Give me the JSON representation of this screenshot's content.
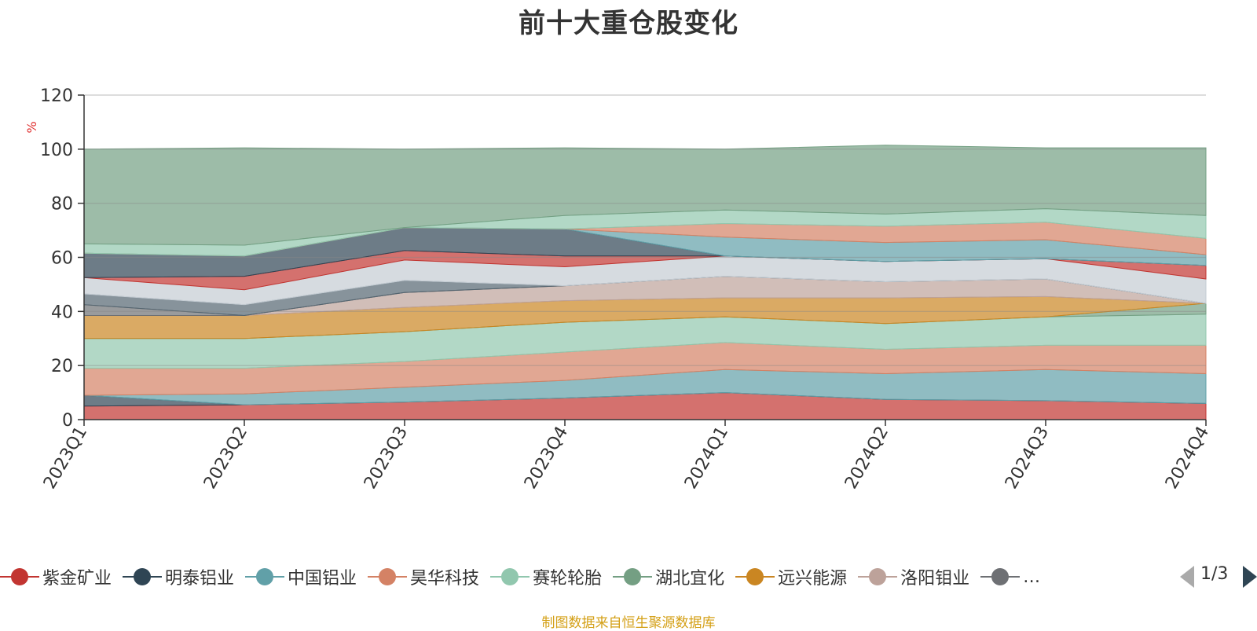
{
  "title": "前十大重仓股变化",
  "source_note": "制图数据来自恒生聚源数据库",
  "pager": {
    "text": "1/3",
    "prev_icon": "triangle-left-icon",
    "next_icon": "triangle-right-icon"
  },
  "legend": [
    {
      "name": "紫金矿业",
      "color": "#c23531"
    },
    {
      "name": "明泰铝业",
      "color": "#2f4554"
    },
    {
      "name": "中国铝业",
      "color": "#61a0a8"
    },
    {
      "name": "昊华科技",
      "color": "#d48265"
    },
    {
      "name": "赛轮轮胎",
      "color": "#91c7ae"
    },
    {
      "name": "湖北宜化",
      "color": "#749f83"
    },
    {
      "name": "远兴能源",
      "color": "#ca8622"
    },
    {
      "name": "洛阳钼业",
      "color": "#bda29a"
    },
    {
      "name": "…",
      "color": "#6e7074"
    }
  ],
  "chart_data": {
    "type": "area",
    "stacked": true,
    "title": "前十大重仓股变化",
    "ylabel": "%",
    "ylim": [
      0,
      120
    ],
    "yticks": [
      0,
      20,
      40,
      60,
      80,
      100,
      120
    ],
    "grid": true,
    "categories": [
      "2023Q1",
      "2023Q2",
      "2023Q3",
      "2023Q4",
      "2024Q1",
      "2024Q2",
      "2024Q3",
      "2024Q4"
    ],
    "series": [
      {
        "color": "#c23531",
        "values": [
          5,
          5.5,
          6.5,
          8,
          10,
          7.5,
          7,
          6
        ]
      },
      {
        "color": "#2f4554",
        "values": [
          4,
          0,
          0,
          0,
          0,
          0,
          0,
          0
        ]
      },
      {
        "color": "#61a0a8",
        "values": [
          0,
          4,
          5.5,
          6.5,
          8.5,
          9.5,
          11.5,
          11
        ]
      },
      {
        "color": "#d48265",
        "values": [
          10,
          9.5,
          9.5,
          10.5,
          10,
          9,
          9,
          10.5
        ]
      },
      {
        "color": "#91c7ae",
        "values": [
          11,
          11,
          11,
          11,
          9.5,
          9.5,
          10.5,
          11.5
        ]
      },
      {
        "color": "#749f83",
        "values": [
          0,
          0,
          0,
          0,
          0,
          0,
          0,
          4
        ]
      },
      {
        "color": "#ca8622",
        "values": [
          8.5,
          8.5,
          9,
          8,
          7,
          9.5,
          7.5,
          0
        ]
      },
      {
        "color": "#bda29a",
        "values": [
          0,
          0,
          5.5,
          5.5,
          8,
          6,
          6.5,
          0
        ]
      },
      {
        "color": "#6e7074",
        "values": [
          4,
          0,
          0,
          0,
          0,
          0,
          0,
          0
        ]
      },
      {
        "color": "#546570",
        "values": [
          4,
          4,
          4.5,
          0,
          0,
          0,
          0,
          0
        ]
      },
      {
        "color": "#c4ccd3",
        "values": [
          6,
          5.5,
          7.5,
          7,
          7.5,
          7.5,
          7.5,
          9
        ]
      },
      {
        "color": "#c23531",
        "values": [
          0,
          5,
          3.5,
          4,
          0,
          0,
          0,
          5
        ]
      },
      {
        "color": "#2f4554",
        "values": [
          9,
          7.5,
          8.5,
          10,
          0,
          0,
          0,
          0
        ]
      },
      {
        "color": "#61a0a8",
        "values": [
          0,
          0,
          0,
          0,
          7,
          7,
          7,
          4
        ]
      },
      {
        "color": "#d48265",
        "values": [
          0,
          0,
          0,
          0,
          5,
          6,
          6.5,
          6
        ]
      },
      {
        "color": "#91c7ae",
        "values": [
          3.5,
          4,
          0,
          5,
          5,
          4.5,
          5,
          8.5
        ]
      },
      {
        "color": "#749f83",
        "values": [
          35,
          36,
          29,
          25,
          22.5,
          25.5,
          22.5,
          25
        ]
      }
    ]
  }
}
